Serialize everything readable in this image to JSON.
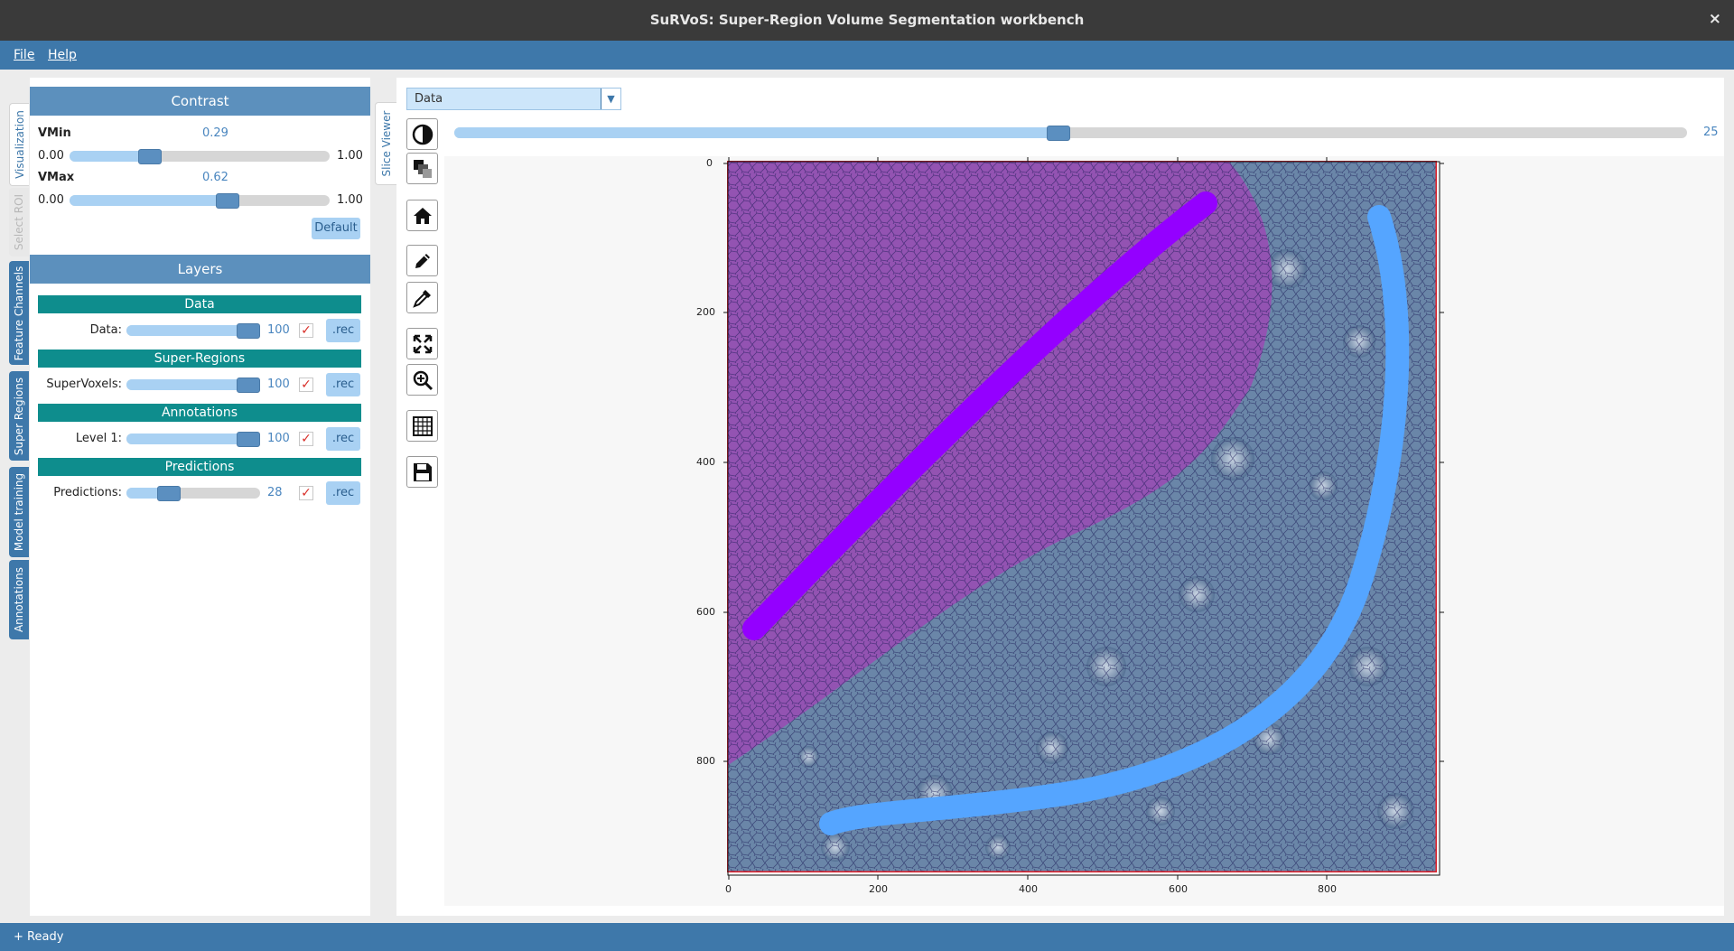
{
  "window": {
    "title": "SuRVoS: Super-Region Volume Segmentation workbench",
    "close_icon": "×"
  },
  "menu": {
    "file": "File",
    "help": "Help"
  },
  "left_tabs": [
    "Visualization",
    "Select ROI",
    "Feature Channels",
    "Super Regions",
    "Model training",
    "Annotations"
  ],
  "contrast": {
    "header": "Contrast",
    "vmin": {
      "label": "VMin",
      "value": "0.29",
      "min": "0.00",
      "max": "1.00",
      "fraction": 0.29
    },
    "vmax": {
      "label": "VMax",
      "value": "0.62",
      "min": "0.00",
      "max": "1.00",
      "fraction": 0.62
    },
    "default_button": "Default"
  },
  "layers": {
    "header": "Layers",
    "groups": [
      {
        "title": "Data",
        "label": "Data:",
        "value": "100",
        "rec": ".rec",
        "fraction": 1.0
      },
      {
        "title": "Super-Regions",
        "label": "SuperVoxels:",
        "value": "100",
        "rec": ".rec",
        "fraction": 1.0
      },
      {
        "title": "Annotations",
        "label": "Level 1:",
        "value": "100",
        "rec": ".rec",
        "fraction": 1.0
      },
      {
        "title": "Predictions",
        "label": "Predictions:",
        "value": "28",
        "rec": ".rec",
        "fraction": 0.28
      }
    ]
  },
  "viewer": {
    "tab": "Slice Viewer",
    "select_value": "Data",
    "slice_value": "25",
    "slice_fraction": 0.49,
    "tools": [
      "contrast-icon",
      "layers-icon",
      "home-icon",
      "pencil-icon",
      "picker-icon",
      "fullscreen-icon",
      "zoom-in-icon",
      "grid-icon",
      "save-icon"
    ]
  },
  "plot": {
    "y_ticks": [
      "0",
      "200",
      "400",
      "600",
      "800"
    ],
    "x_ticks": [
      "0",
      "200",
      "400",
      "600",
      "800"
    ]
  },
  "status": {
    "text": "+ Ready"
  },
  "colors": {
    "accent": "#3e78aa",
    "teal": "#0e8d8d",
    "purple_annotation": "#9400ff",
    "blue_annotation": "#55a5ff"
  }
}
